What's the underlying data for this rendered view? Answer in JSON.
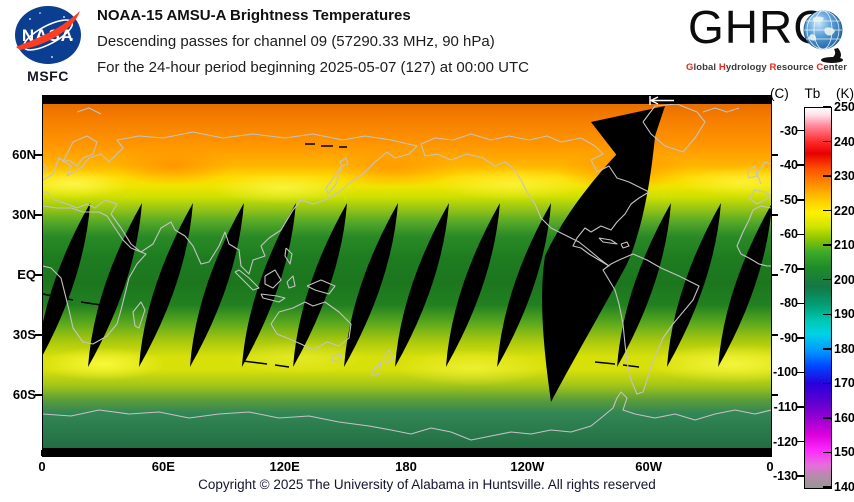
{
  "header": {
    "title": "NOAA-15 AMSU-A Brightness Temperatures",
    "subtitle1": "Descending passes for channel 09 (57290.33 MHz, 90 hPa)",
    "subtitle2": "For the 24-hour period beginning 2025-05-07 (127) at 00:00 UTC",
    "nasa": {
      "wordmark": "NASA",
      "caption": "MSFC"
    },
    "ghrc": {
      "wordmark": "GHRC",
      "caption_words": [
        [
          "G",
          "lobal"
        ],
        [
          "H",
          "ydrology"
        ],
        [
          "R",
          "esource"
        ],
        [
          "C",
          "enter"
        ]
      ]
    }
  },
  "map": {
    "lat_ticks": [
      "60N",
      "30N",
      "EQ",
      "30S",
      "60S"
    ],
    "lon_ticks": [
      "0",
      "60E",
      "120E",
      "180",
      "120W",
      "60W",
      "0"
    ]
  },
  "colorbar": {
    "header_c": "(C)",
    "header_tb": "Tb",
    "header_k": "(K)",
    "kelvin_ticks": [
      "250",
      "240",
      "230",
      "220",
      "210",
      "200",
      "190",
      "180",
      "170",
      "160",
      "150",
      "140"
    ],
    "celsius_ticks": [
      "-30",
      "-40",
      "-50",
      "-60",
      "-70",
      "-80",
      "-90",
      "-100",
      "-110",
      "-120",
      "-130"
    ]
  },
  "footer": {
    "copyright": "Copyright © 2025 The University of Alabama in Huntsville.  All rights reserved"
  },
  "chart_data": {
    "type": "heatmap",
    "title": "NOAA-15 AMSU-A Brightness Temperatures",
    "subtitle": [
      "Descending passes for channel 09 (57290.33 MHz, 90 hPa)",
      "For the 24-hour period beginning 2025-05-07 (127) at 00:00 UTC"
    ],
    "projection": "equirectangular, global, longitude 0E eastward to 360E",
    "x_tick_labels": [
      "0",
      "60E",
      "120E",
      "180",
      "120W",
      "60W",
      "0"
    ],
    "y_tick_labels": [
      "60N",
      "30N",
      "EQ",
      "30S",
      "60S"
    ],
    "colorbar": {
      "quantity": "Tb",
      "units_right": "K",
      "units_left": "C",
      "range_k": [
        140,
        250
      ],
      "kelvin_ticks": [
        250,
        240,
        230,
        220,
        210,
        200,
        190,
        180,
        170,
        160,
        150,
        140
      ],
      "celsius_ticks": [
        -30,
        -40,
        -50,
        -60,
        -70,
        -80,
        -90,
        -100,
        -110,
        -120,
        -130
      ],
      "colors_top_to_bottom": [
        "#ffffff",
        "#ff2828",
        "#ff8c00",
        "#ffc800",
        "#fff000",
        "#96c800",
        "#1e8c28",
        "#00a078",
        "#00d2e6",
        "#0046ff",
        "#5a00d2",
        "#dc00dc",
        "#ff28ff",
        "#969696"
      ]
    },
    "zonal_mean_tb_k": {
      "lat": [
        85,
        75,
        65,
        55,
        45,
        35,
        25,
        15,
        5,
        -5,
        -15,
        -25,
        -35,
        -45,
        -55,
        -65,
        -75,
        -85
      ],
      "tb_k": [
        228,
        226,
        222,
        219,
        215,
        210,
        206,
        204,
        203,
        203,
        204,
        208,
        214,
        218,
        215,
        210,
        204,
        200
      ]
    },
    "no_data": {
      "color": "#000000",
      "description": "black lens-shaped gaps between adjacent descending orbit swaths (roughly 30N to 45S) plus one wide missing-orbit swath from the Arctic to about 65S",
      "gap_centers_lon_e": [
        10,
        35.6,
        60.8,
        86,
        111.7,
        137,
        162.2,
        187.4,
        212.6,
        237.9,
        297.2,
        321.9,
        347.2
      ],
      "wide_gap_center_lon_e": 268
    },
    "legend_position": "right colorbar",
    "grid": false
  }
}
